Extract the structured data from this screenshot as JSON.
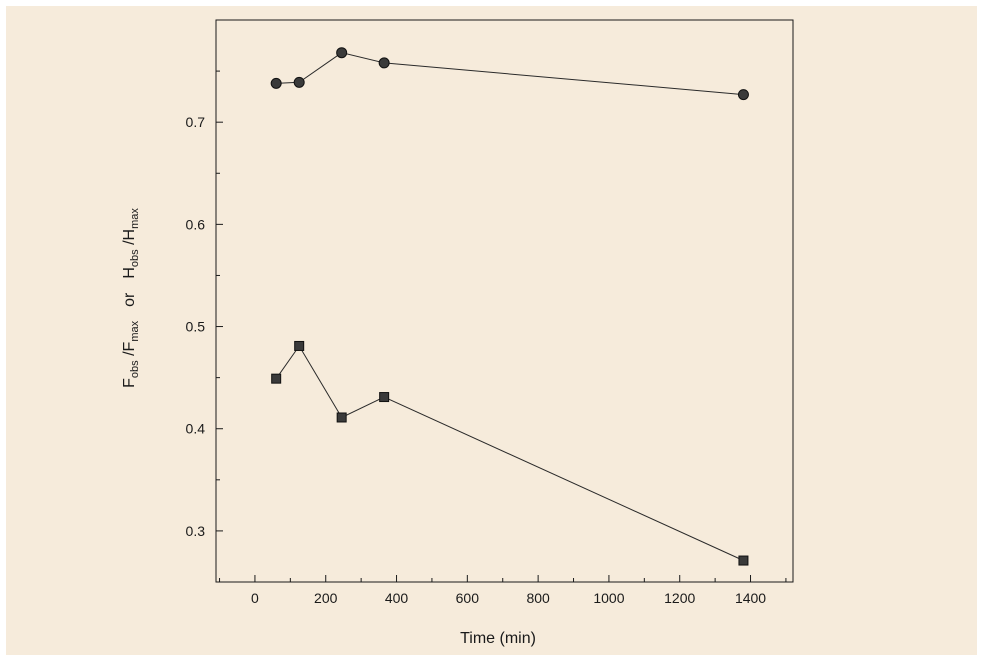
{
  "chart_data": {
    "type": "scatter",
    "title": "",
    "xlabel": "Time (min)",
    "ylabel": {
      "f_main": "F",
      "f_sub1": "obs",
      "f_slash": " /F",
      "f_sub2": "max",
      "or": "or",
      "h_main": "H",
      "h_sub1": "obs",
      "h_slash": " /H",
      "h_sub2": "max"
    },
    "xlim": [
      -110,
      1520
    ],
    "ylim": [
      0.25,
      0.8
    ],
    "xticks": [
      0,
      200,
      400,
      600,
      800,
      1000,
      1200,
      1400
    ],
    "xtick_labels": [
      "0",
      "200",
      "400",
      "600",
      "800",
      "1000",
      "1200",
      "1400"
    ],
    "yticks": [
      0.3,
      0.4,
      0.5,
      0.6,
      0.7
    ],
    "ytick_labels": [
      "0.3",
      "0.4",
      "0.5",
      "0.6",
      "0.7"
    ],
    "grid": false,
    "series": [
      {
        "marker": "circle",
        "color": "#3a3a3a",
        "x": [
          60,
          125,
          245,
          365,
          1380
        ],
        "y": [
          0.738,
          0.739,
          0.768,
          0.758,
          0.727
        ]
      },
      {
        "marker": "square",
        "color": "#3a3a3a",
        "x": [
          60,
          125,
          245,
          365,
          1380
        ],
        "y": [
          0.449,
          0.481,
          0.411,
          0.431,
          0.271
        ]
      }
    ]
  }
}
